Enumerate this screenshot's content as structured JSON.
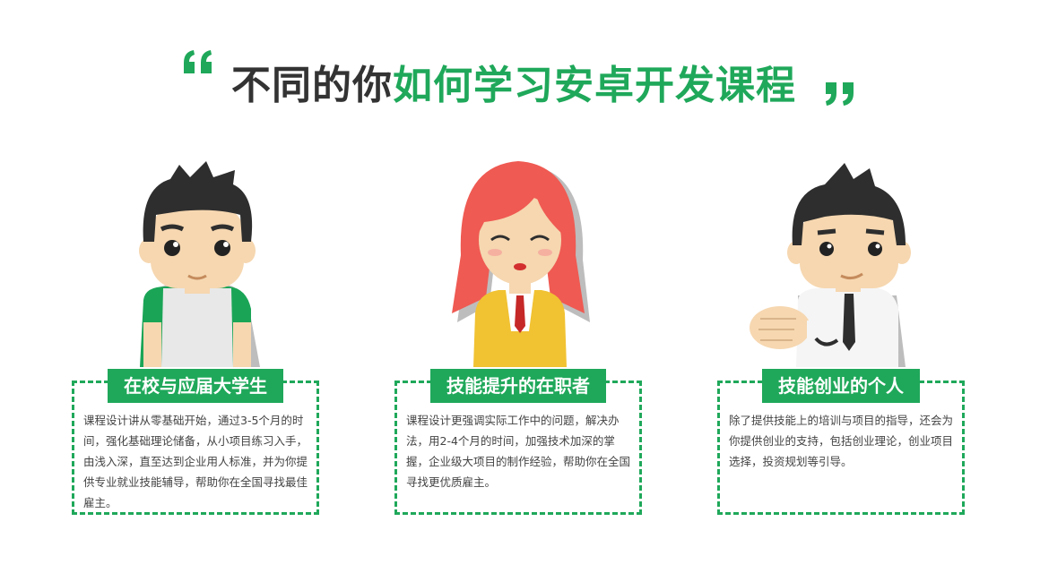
{
  "header": {
    "title_dark": "不同的你",
    "title_green": "如何学习安卓开发课程",
    "accent_color": "#1fa85a"
  },
  "cards": [
    {
      "title": "在校与应届大学生",
      "body": "课程设计讲从零基础开始，通过3-5个月的时间，强化基础理论储备，从小项目练习入手，由浅入深，直至达到企业用人标准，并为你提供专业就业技能辅导，帮助你在全国寻找最佳雇主。",
      "figure": "student-figure"
    },
    {
      "title": "技能提升的在职者",
      "body": "课程设计更强调实际工作中的问题，解决办法，用2-4个月的时间，加强技术加深的掌握，企业级大项目的制作经验，帮助你在全国寻找更优质雇主。",
      "figure": "professional-figure"
    },
    {
      "title": "技能创业的个人",
      "body": "除了提供技能上的培训与项目的指导，还会为你提供创业的支持，包括创业理论，创业项目选择，投资规划等引导。",
      "figure": "entrepreneur-figure"
    }
  ]
}
